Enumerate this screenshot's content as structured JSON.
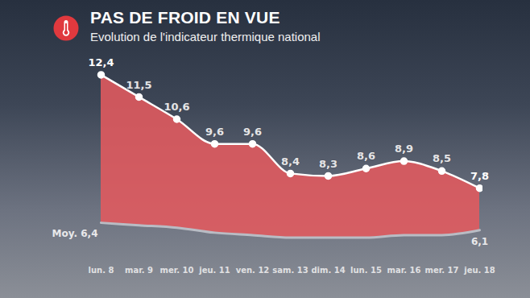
{
  "chart_data": {
    "type": "area",
    "title": "PAS DE FROID EN VUE",
    "subtitle": "Evolution de l'indicateur thermique national",
    "categories": [
      "lun. 8",
      "mar. 9",
      "mer. 10",
      "jeu. 11",
      "ven. 12",
      "sam. 13",
      "dim. 14",
      "lun. 15",
      "mar. 16",
      "mer. 17",
      "jeu. 18"
    ],
    "series": [
      {
        "color": "#e25a5e",
        "marker": "circle",
        "values": [
          12.4,
          11.5,
          10.6,
          9.6,
          9.6,
          8.4,
          8.3,
          8.6,
          8.9,
          8.5,
          7.8
        ],
        "value_labels": [
          "12,4",
          "11,5",
          "10,6",
          "9,6",
          "9,6",
          "8,4",
          "8,3",
          "8,6",
          "8,9",
          "8,5",
          "7,8"
        ]
      },
      {
        "name": "Moy.",
        "color": "#b9bcc4",
        "values": [
          6.4,
          6.3,
          6.2,
          6.0,
          5.9,
          5.8,
          5.8,
          5.8,
          5.9,
          5.9,
          6.1
        ],
        "value_labels": [
          "6,4",
          null,
          null,
          null,
          null,
          null,
          null,
          null,
          null,
          null,
          "6,1"
        ]
      }
    ],
    "ylim": [
      5,
      13
    ],
    "data_labels": true,
    "tick_labels": "x"
  }
}
